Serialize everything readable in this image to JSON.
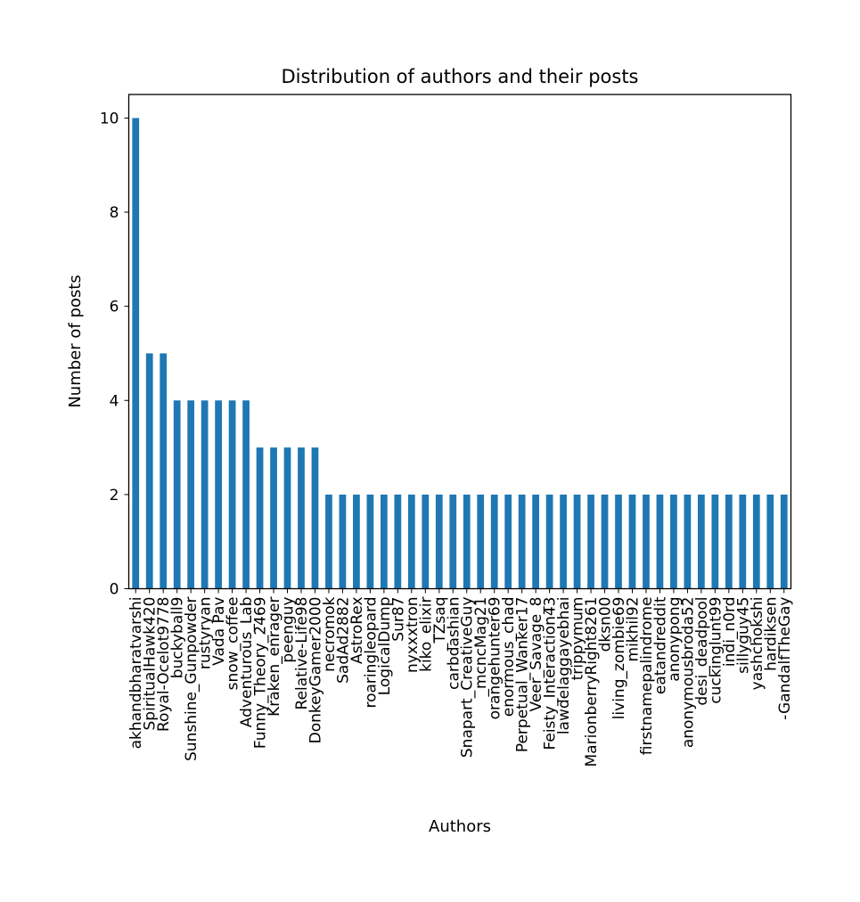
{
  "chart_data": {
    "type": "bar",
    "title": "Distribution of authors and their posts",
    "xlabel": "Authors",
    "ylabel": "Number of posts",
    "ylim": [
      0,
      10.5
    ],
    "yticks": [
      0,
      2,
      4,
      6,
      8,
      10
    ],
    "grid": false,
    "legend": "none",
    "bar_color": "#1f77b4",
    "categories": [
      "akhandbharatvarshi",
      "SpiritualHawk420",
      "Royal-Ocelot9778",
      "buckyball9",
      "Sunshine_Gunpowder",
      "rustyryan",
      "Vada Pav",
      "snow_coffee",
      "Adventurous_Lab",
      "Funny_Theory_2469",
      "Kraken_enrager",
      "peenguy",
      "Relative-Life98",
      "DonkeyGamer2000",
      "necromok",
      "SadAd2882",
      "AstroRex",
      "roaringleopard",
      "LogicalDump",
      "Sur87",
      "nyxxxtron",
      "kiko_elixir",
      "_TZsaq",
      "carbdashian",
      "Snapart_CreativeGuy",
      "_mcncMag21",
      "orangehunter69",
      "enormous_chad",
      "Perpetual_Wanker17",
      "Veer_Savage_8",
      "Feisty_Interaction43",
      "lawdelaggayebhai",
      "trippymum",
      "MarionberryRight8261",
      "dksn00",
      "living_zombie69",
      "mikhil92",
      "firstnamepalindrome",
      "eatandreddit",
      "anonypong",
      "anonymousbroda52",
      "desi_deadpool",
      "cuckinglunt99",
      "indi_n0rd",
      "sillyguy45",
      "yashchokshi",
      "hardiksen",
      "-GandalfTheGay"
    ],
    "values": [
      10,
      5,
      5,
      4,
      4,
      4,
      4,
      4,
      4,
      3,
      3,
      3,
      3,
      3,
      2,
      2,
      2,
      2,
      2,
      2,
      2,
      2,
      2,
      2,
      2,
      2,
      2,
      2,
      2,
      2,
      2,
      2,
      2,
      2,
      2,
      2,
      2,
      2,
      2,
      2,
      2,
      2,
      2,
      2,
      2,
      2,
      2,
      2
    ]
  }
}
